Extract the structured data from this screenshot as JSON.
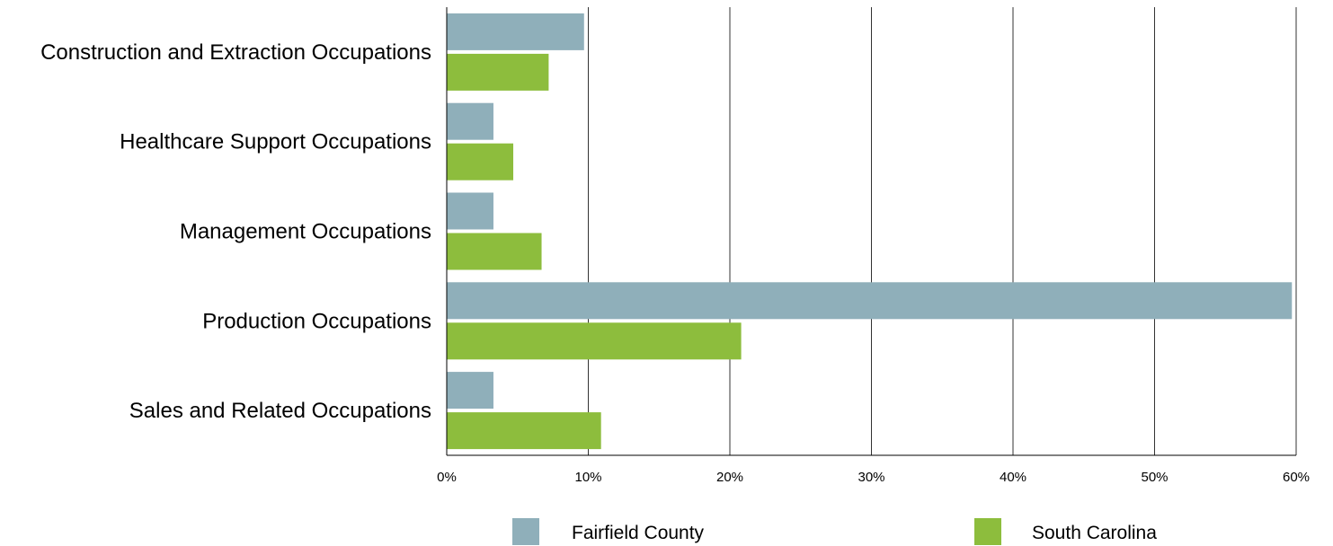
{
  "chart_data": {
    "type": "bar",
    "orientation": "horizontal",
    "categories": [
      "Construction and Extraction Occupations",
      "Healthcare Support Occupations",
      "Management Occupations",
      "Production Occupations",
      "Sales and Related Occupations"
    ],
    "series": [
      {
        "name": "Fairfield County",
        "color": "#8fafba",
        "values": [
          9.7,
          3.3,
          3.3,
          59.7,
          3.3
        ]
      },
      {
        "name": "South Carolina",
        "color": "#8dbd3d",
        "values": [
          7.2,
          4.7,
          6.7,
          20.8,
          10.9
        ]
      }
    ],
    "xlim": [
      0,
      60
    ],
    "x_ticks": [
      0,
      10,
      20,
      30,
      40,
      50,
      60
    ],
    "x_tick_labels": [
      "0%",
      "10%",
      "20%",
      "30%",
      "40%",
      "50%",
      "60%"
    ],
    "title": "",
    "xlabel": "",
    "ylabel": "",
    "grid": "vertical",
    "legend_position": "bottom",
    "colors": {
      "gridline": "#333333",
      "axis": "#000000"
    }
  }
}
